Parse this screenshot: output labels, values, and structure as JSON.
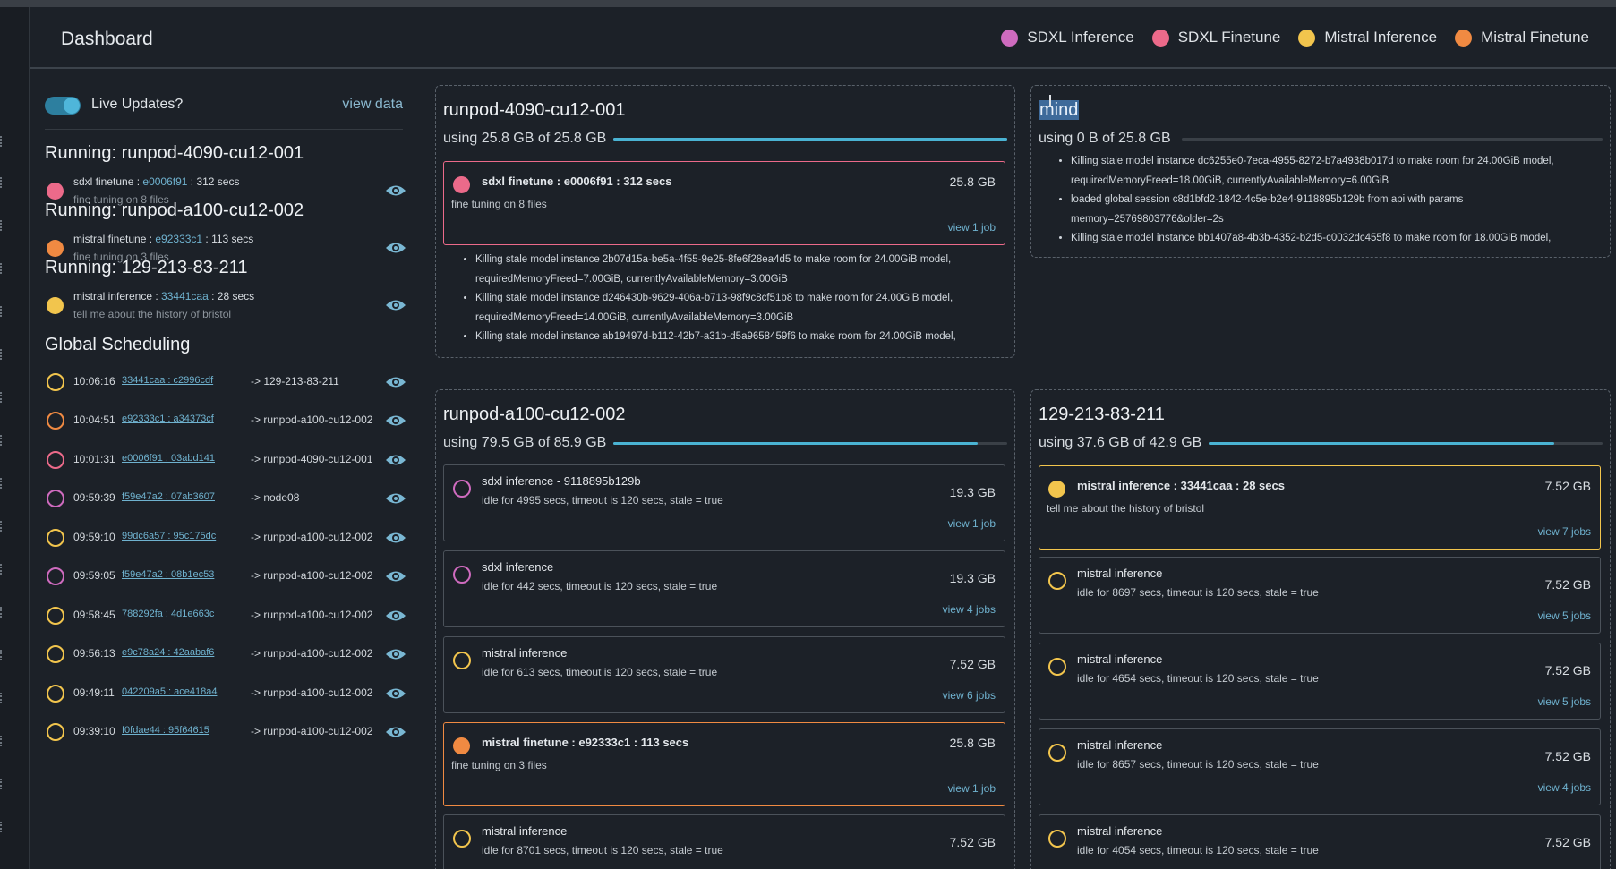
{
  "header": {
    "title": "Dashboard"
  },
  "legend": [
    {
      "label": "SDXL Inference",
      "color": "#cf6bbf"
    },
    {
      "label": "SDXL Finetune",
      "color": "#ec6a8a"
    },
    {
      "label": "Mistral Inference",
      "color": "#f2c54d"
    },
    {
      "label": "Mistral Finetune",
      "color": "#f08a42"
    }
  ],
  "sidebar": {
    "live_label": "Live Updates?",
    "live_on": true,
    "view_data": "view data",
    "running": [
      {
        "title": "Running: runpod-4090-cu12-001",
        "prefix": "sdxl finetune : ",
        "job": "e0006f91",
        "suffix": " : 312 secs",
        "desc": "fine tuning on 8 files",
        "color": "#ec6a8a"
      },
      {
        "title": "Running: runpod-a100-cu12-002",
        "prefix": "mistral finetune : ",
        "job": "e92333c1",
        "suffix": " : 113 secs",
        "desc": "fine tuning on 3 files",
        "color": "#f08a42"
      },
      {
        "title": "Running: 129-213-83-211",
        "prefix": "mistral inference : ",
        "job": "33441caa",
        "suffix": " : 28 secs",
        "desc": "tell me about the history of bristol",
        "color": "#f2c54d"
      }
    ],
    "global_title": "Global Scheduling",
    "schedule": [
      {
        "time": "10:06:16",
        "job": "33441caa : c2996cdf",
        "target": "-> 129-213-83-211",
        "color": "#f2c54d"
      },
      {
        "time": "10:04:51",
        "job": "e92333c1 : a34373cf",
        "target": "-> runpod-a100-cu12-002",
        "color": "#f08a42"
      },
      {
        "time": "10:01:31",
        "job": "e0006f91 : 03abd141",
        "target": "-> runpod-4090-cu12-001",
        "color": "#ec6a8a"
      },
      {
        "time": "09:59:39",
        "job": "f59e47a2 : 07ab3607",
        "target": "-> node08",
        "color": "#cf6bbf"
      },
      {
        "time": "09:59:10",
        "job": "99dc6a57 : 95c175dc",
        "target": "-> runpod-a100-cu12-002",
        "color": "#f2c54d"
      },
      {
        "time": "09:59:05",
        "job": "f59e47a2 : 08b1ec53",
        "target": "-> runpod-a100-cu12-002",
        "color": "#cf6bbf"
      },
      {
        "time": "09:58:45",
        "job": "788292fa : 4d1e663c",
        "target": "-> runpod-a100-cu12-002",
        "color": "#f2c54d"
      },
      {
        "time": "09:56:13",
        "job": "e9c78a24 : 42aabaf6",
        "target": "-> runpod-a100-cu12-002",
        "color": "#f2c54d"
      },
      {
        "time": "09:49:11",
        "job": "042209a5 : ace418a4",
        "target": "-> runpod-a100-cu12-002",
        "color": "#f2c54d"
      },
      {
        "time": "09:39:10",
        "job": "f0fdae44 : 95f64615",
        "target": "-> runpod-a100-cu12-002",
        "color": "#f2c54d"
      }
    ]
  },
  "panels": {
    "p4090": {
      "title": "runpod-4090-cu12-001",
      "usage": "using 25.8 GB of 25.8 GB",
      "fraction": 1.0,
      "card": {
        "name": "sdxl finetune : e0006f91 : 312 secs",
        "desc": "fine tuning on 8 files",
        "size": "25.8 GB",
        "jobs": "view 1 job",
        "color": "#ec6a8a"
      },
      "logs": [
        "Killing stale model instance 2b07d15a-be5a-4f55-9e25-8fe6f28ea4d5 to make room for 24.00GiB model,",
        "requiredMemoryFreed=7.00GiB, currentlyAvailableMemory=3.00GiB",
        "Killing stale model instance d246430b-9629-406a-b713-98f9c8cf51b8 to make room for 24.00GiB model,",
        "requiredMemoryFreed=14.00GiB, currentlyAvailableMemory=3.00GiB",
        "Killing stale model instance ab19497d-b112-42b7-a31b-d5a9658459f6 to make room for 24.00GiB model,"
      ]
    },
    "mind": {
      "title": "mind",
      "usage": "using 0 B of 25.8 GB",
      "fraction": 0.0,
      "logs": [
        "Killing stale model instance dc6255e0-7eca-4955-8272-b7a4938b017d to make room for 24.00GiB model,",
        "requiredMemoryFreed=18.00GiB, currentlyAvailableMemory=6.00GiB",
        "loaded global session c8d1bfd2-1842-4c5e-b2e4-9118895b129b from api with params",
        "memory=25769803776&older=2s",
        "Killing stale model instance bb1407a8-4b3b-4352-b2d5-c0032dc455f8 to make room for 18.00GiB model,"
      ]
    },
    "a100": {
      "title": "runpod-a100-cu12-002",
      "usage": "using 79.5 GB of 85.9 GB",
      "fraction": 0.925,
      "cards": [
        {
          "name": "sdxl inference - 9118895b129b",
          "desc": "idle for 4995 secs, timeout is 120 secs, stale = true",
          "size": "19.3 GB",
          "jobs": "view 1 job",
          "color": "#cf6bbf"
        },
        {
          "name": "sdxl inference",
          "desc": "idle for 442 secs, timeout is 120 secs, stale = true",
          "size": "19.3 GB",
          "jobs": "view 4 jobs",
          "color": "#cf6bbf"
        },
        {
          "name": "mistral inference",
          "desc": "idle for 613 secs, timeout is 120 secs, stale = true",
          "size": "7.52 GB",
          "jobs": "view 6 jobs",
          "color": "#f2c54d"
        },
        {
          "name": "mistral finetune : e92333c1 : 113 secs",
          "desc": "fine tuning on 3 files",
          "size": "25.8 GB",
          "jobs": "view 1 job",
          "color": "#f08a42"
        },
        {
          "name": "mistral inference",
          "desc": "idle for 8701 secs, timeout is 120 secs, stale = true",
          "size": "7.52 GB",
          "jobs": "",
          "color": "#f2c54d"
        }
      ]
    },
    "n129": {
      "title": "129-213-83-211",
      "usage": "using 37.6 GB of 42.9 GB",
      "fraction": 0.877,
      "cards": [
        {
          "name": "mistral inference : 33441caa : 28 secs",
          "desc": "tell me about the history of bristol",
          "size": "7.52 GB",
          "jobs": "view 7 jobs",
          "color": "#f2c54d"
        },
        {
          "name": "mistral inference",
          "desc": "idle for 8697 secs, timeout is 120 secs, stale = true",
          "size": "7.52 GB",
          "jobs": "view 5 jobs",
          "color": "#f2c54d"
        },
        {
          "name": "mistral inference",
          "desc": "idle for 4654 secs, timeout is 120 secs, stale = true",
          "size": "7.52 GB",
          "jobs": "view 5 jobs",
          "color": "#f2c54d"
        },
        {
          "name": "mistral inference",
          "desc": "idle for 8657 secs, timeout is 120 secs, stale = true",
          "size": "7.52 GB",
          "jobs": "view 4 jobs",
          "color": "#f2c54d"
        },
        {
          "name": "mistral inference",
          "desc": "idle for 4054 secs, timeout is 120 secs, stale = true",
          "size": "7.52 GB",
          "jobs": "",
          "color": "#f2c54d"
        }
      ]
    }
  }
}
